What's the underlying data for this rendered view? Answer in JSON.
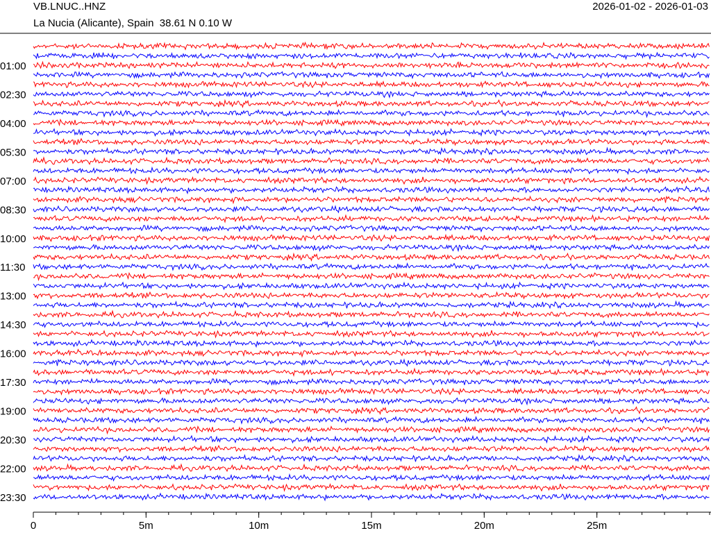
{
  "chart_data": {
    "type": "helicorder",
    "title": "VB.LNUC..HNZ",
    "subtitle": "La Nucia (Alicante), Spain  38.61 N 0.10 W",
    "date_range": "2026-01-02 - 2026-01-03",
    "trace_colors": [
      "#ff0000",
      "#0000ff"
    ],
    "row_labels": [
      null,
      null,
      "01:00",
      null,
      null,
      "02:30",
      null,
      null,
      "04:00",
      null,
      null,
      "05:30",
      null,
      null,
      "07:00",
      null,
      null,
      "08:30",
      null,
      null,
      "10:00",
      null,
      null,
      "11:30",
      null,
      null,
      "13:00",
      null,
      null,
      "14:30",
      null,
      null,
      "16:00",
      null,
      null,
      "17:30",
      null,
      null,
      "19:00",
      null,
      null,
      "20:30",
      null,
      null,
      "22:00",
      null,
      null,
      "23:30"
    ],
    "xlim": [
      0,
      30
    ],
    "xticks": [
      {
        "value": 0,
        "label": "0"
      },
      {
        "value": 5,
        "label": "5m"
      },
      {
        "value": 10,
        "label": "10m"
      },
      {
        "value": 15,
        "label": "15m"
      },
      {
        "value": 20,
        "label": "20m"
      },
      {
        "value": 25,
        "label": "25m"
      }
    ],
    "minor_tick_step": 1
  }
}
